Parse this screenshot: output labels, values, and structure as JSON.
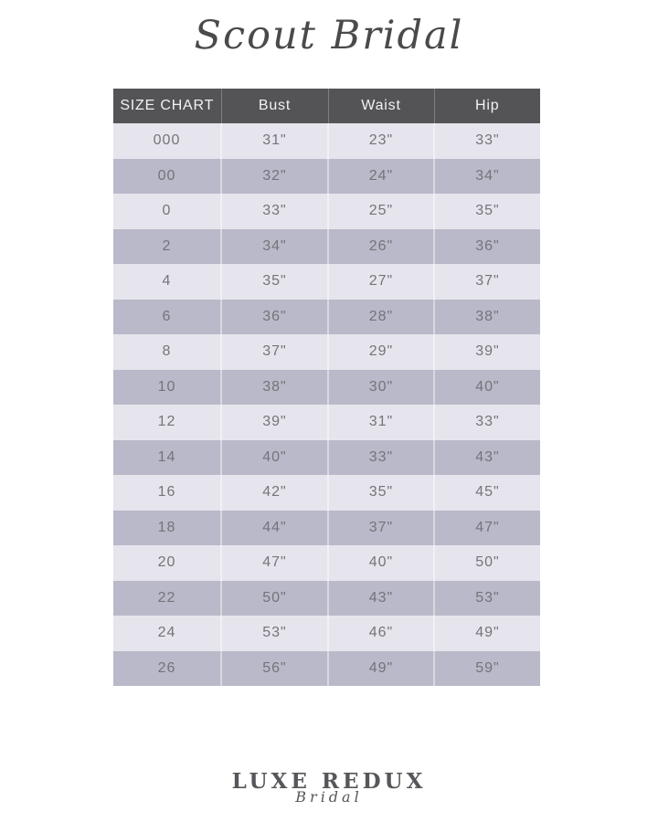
{
  "brand": {
    "title": "Scout Bridal"
  },
  "table": {
    "headers": [
      "SIZE CHART",
      "Bust",
      "Waist",
      "Hip"
    ],
    "rows": [
      [
        "000",
        "31\"",
        "23\"",
        "33\""
      ],
      [
        "00",
        "32\"",
        "24\"",
        "34\""
      ],
      [
        "0",
        "33\"",
        "25\"",
        "35\""
      ],
      [
        "2",
        "34\"",
        "26\"",
        "36\""
      ],
      [
        "4",
        "35\"",
        "27\"",
        "37\""
      ],
      [
        "6",
        "36\"",
        "28\"",
        "38\""
      ],
      [
        "8",
        "37\"",
        "29\"",
        "39\""
      ],
      [
        "10",
        "38\"",
        "30\"",
        "40\""
      ],
      [
        "12",
        "39\"",
        "31\"",
        "33\""
      ],
      [
        "14",
        "40\"",
        "33\"",
        "43\""
      ],
      [
        "16",
        "42\"",
        "35\"",
        "45\""
      ],
      [
        "18",
        "44\"",
        "37\"",
        "47\""
      ],
      [
        "20",
        "47\"",
        "40\"",
        "50\""
      ],
      [
        "22",
        "50\"",
        "43\"",
        "53\""
      ],
      [
        "24",
        "53\"",
        "46\"",
        "49\""
      ],
      [
        "26",
        "56\"",
        "49\"",
        "59\""
      ]
    ]
  },
  "footer": {
    "logo_main": "LUXE REDUX",
    "logo_script": "Bridal"
  },
  "colors": {
    "header_bg": "#545456",
    "header_text": "#f2f2f2",
    "row_light": "#e6e5ed",
    "row_dark": "#b9b9c9",
    "body_text": "#74747b",
    "title_text": "#4a4a4c",
    "logo_text": "#57575b"
  }
}
